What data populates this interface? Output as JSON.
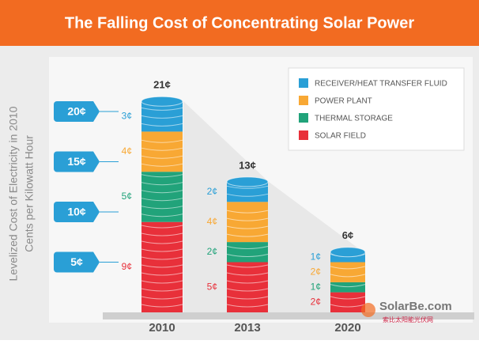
{
  "chart_data": {
    "type": "bar",
    "stacked": true,
    "title": "The Falling Cost of Concentrating Solar Power",
    "y_label": [
      "Levelized Cost of Electricity in 2010",
      "Cents per Kilowatt Hour"
    ],
    "categories": [
      "2010",
      "2013",
      "2020"
    ],
    "series": [
      {
        "name": "SOLAR FIELD",
        "color": "#e8303a",
        "values": [
          9,
          5,
          2
        ],
        "value_labels": [
          "9¢",
          "5¢",
          "2¢"
        ]
      },
      {
        "name": "THERMAL STORAGE",
        "color": "#21a37a",
        "values": [
          5,
          2,
          1
        ],
        "value_labels": [
          "5¢",
          "2¢",
          "1¢"
        ]
      },
      {
        "name": "POWER PLANT",
        "color": "#f8a834",
        "values": [
          4,
          4,
          2
        ],
        "value_labels": [
          "4¢",
          "4¢",
          "2¢"
        ]
      },
      {
        "name": "RECEIVER/HEAT TRANSFER FLUID",
        "color": "#2a9fd6",
        "values": [
          3,
          2,
          1
        ],
        "value_labels": [
          "3¢",
          "2¢",
          "1¢"
        ]
      }
    ],
    "totals": {
      "values": [
        21,
        13,
        6
      ],
      "value_labels": [
        "21¢",
        "13¢",
        "6¢"
      ]
    },
    "ylim": [
      0,
      22
    ],
    "yticks": [
      {
        "value": 5,
        "label": "5¢"
      },
      {
        "value": 10,
        "label": "10¢"
      },
      {
        "value": 15,
        "label": "15¢"
      },
      {
        "value": 20,
        "label": "20¢"
      }
    ],
    "legend_position": "upper right",
    "watermark": {
      "logo": "SolarBe.com",
      "subtitle": "索比太阳能光伏网"
    }
  }
}
